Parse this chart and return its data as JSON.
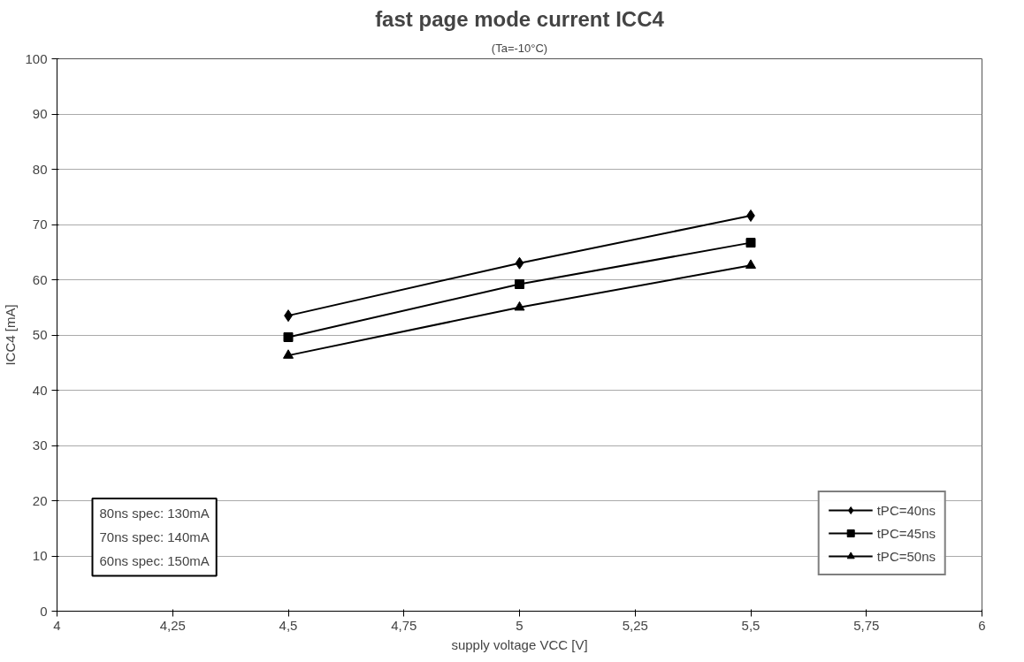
{
  "chart_data": {
    "type": "line",
    "title": "fast page mode current ICC4",
    "subtitle": "(Ta=-10°C)",
    "xlabel": "supply voltage VCC [V]",
    "ylabel": "ICC4 [mA]",
    "x": [
      4.5,
      5,
      5.5
    ],
    "series": [
      {
        "name": "tPC=40ns",
        "color": "#000000",
        "marker": "diamond",
        "values": [
          53.5,
          63,
          71.6
        ]
      },
      {
        "name": "tPC=45ns",
        "color": "#000000",
        "marker": "square",
        "values": [
          49.6,
          59.2,
          66.7
        ]
      },
      {
        "name": "tPC=50ns",
        "color": "#000000",
        "marker": "triangle",
        "values": [
          46.3,
          55,
          62.6
        ]
      }
    ],
    "xlim": [
      4,
      6
    ],
    "xticks": [
      4,
      {
        "value": 4.25,
        "label": "4,25"
      },
      {
        "value": 4.5,
        "label": "4,5"
      },
      {
        "value": 4.75,
        "label": "4,75"
      },
      5,
      {
        "value": 5.25,
        "label": "5,25"
      },
      {
        "value": 5.5,
        "label": "5,5"
      },
      {
        "value": 5.75,
        "label": "5,75"
      },
      6
    ],
    "ylim": [
      0,
      100
    ],
    "yticks": [
      0,
      10,
      20,
      30,
      40,
      50,
      60,
      70,
      80,
      90,
      100
    ],
    "grid": "y",
    "legend": "bottom right",
    "line_style": "solid",
    "annotations": [
      "80ns spec: 130mA",
      "70ns spec: 140mA",
      "60ns spec: 150mA"
    ]
  }
}
